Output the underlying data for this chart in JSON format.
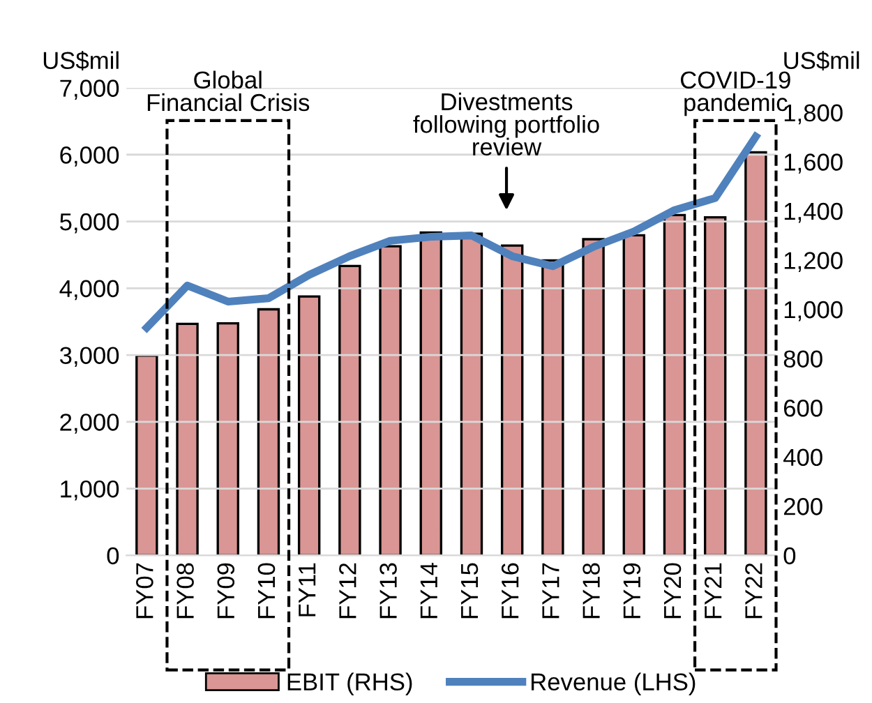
{
  "chart_data": {
    "type": "bar",
    "ylabel": "US$mil",
    "y2label": "US$mil",
    "categories": [
      "FY07",
      "FY08",
      "FY09",
      "FY10",
      "FY11",
      "FY12",
      "FY13",
      "FY14",
      "FY15",
      "FY16",
      "FY17",
      "FY18",
      "FY19",
      "FY20",
      "FY21",
      "FY22"
    ],
    "series": [
      {
        "name": "EBIT (RHS)",
        "axis": "y2",
        "color": "#d99694",
        "values": [
          812,
          941,
          943,
          1000,
          1052,
          1176,
          1256,
          1312,
          1307,
          1259,
          1199,
          1285,
          1301,
          1383,
          1374,
          1638
        ]
      },
      {
        "name": "Revenue (LHS)",
        "type": "line",
        "axis": "y",
        "color": "#4f81bd",
        "values": [
          3410,
          4040,
          3800,
          3850,
          4200,
          4480,
          4710,
          4770,
          4790,
          4480,
          4330,
          4620,
          4850,
          5170,
          5350,
          6270
        ]
      }
    ],
    "ylim": [
      0,
      7000
    ],
    "yticks": [
      {
        "value": 0,
        "label": "0"
      },
      {
        "value": 1000,
        "label": "1,000"
      },
      {
        "value": 2000,
        "label": "2,000"
      },
      {
        "value": 3000,
        "label": "3,000"
      },
      {
        "value": 4000,
        "label": "4,000"
      },
      {
        "value": 5000,
        "label": "5,000"
      },
      {
        "value": 6000,
        "label": "6,000"
      },
      {
        "value": 7000,
        "label": "7,000"
      }
    ],
    "y2lim": [
      0,
      1900
    ],
    "y2ticks": [
      {
        "value": 0,
        "label": "0"
      },
      {
        "value": 200,
        "label": "200"
      },
      {
        "value": 400,
        "label": "400"
      },
      {
        "value": 600,
        "label": "600"
      },
      {
        "value": 800,
        "label": "800"
      },
      {
        "value": 1000,
        "label": "1,000"
      },
      {
        "value": 1200,
        "label": "1,200"
      },
      {
        "value": 1400,
        "label": "1,400"
      },
      {
        "value": 1600,
        "label": "1,600"
      },
      {
        "value": 1800,
        "label": "1,800"
      }
    ],
    "annotations": [
      "Global\nFinancial Crisis",
      "Divestments\nfollowing portfolio\nreview",
      "COVID-19\npandemic"
    ],
    "grid": "y",
    "legend": "bottom",
    "marker": "none",
    "line_style": "solid"
  }
}
